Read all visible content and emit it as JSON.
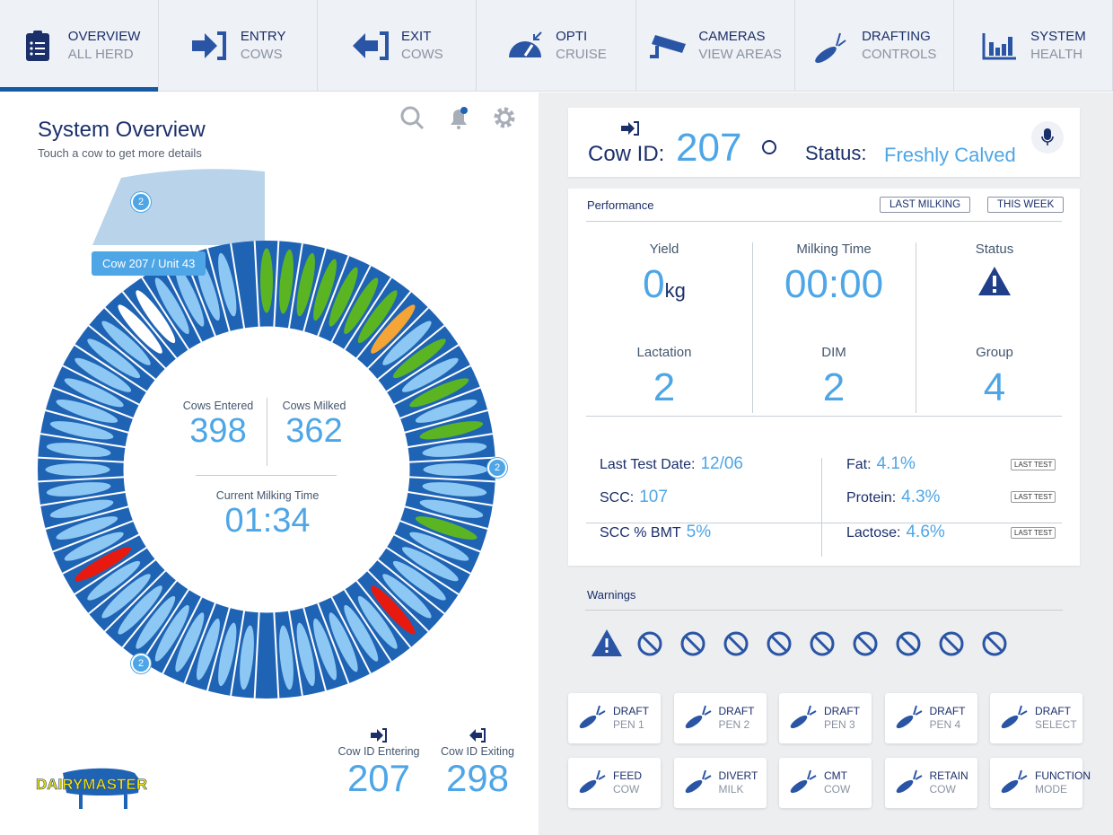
{
  "nav": [
    {
      "l1": "OVERVIEW",
      "l2": "ALL HERD",
      "icon": "clipboard-list-icon"
    },
    {
      "l1": "ENTRY",
      "l2": "COWS",
      "icon": "entry-arrow-icon"
    },
    {
      "l1": "EXIT",
      "l2": "COWS",
      "icon": "exit-arrow-icon"
    },
    {
      "l1": "OPTI",
      "l2": "CRUISE",
      "icon": "speedometer-icon"
    },
    {
      "l1": "CAMERAS",
      "l2": "VIEW AREAS",
      "icon": "camera-icon"
    },
    {
      "l1": "DRAFTING",
      "l2": "CONTROLS",
      "icon": "drafting-icon"
    },
    {
      "l1": "SYSTEM",
      "l2": "HEALTH",
      "icon": "bar-chart-icon"
    }
  ],
  "overview": {
    "title": "System Overview",
    "subtitle": "Touch a cow to get more details",
    "tooltip": "Cow 207 / Unit 43",
    "badges": [
      "2",
      "2",
      "2"
    ],
    "cows_entered_label": "Cows Entered",
    "cows_entered": "398",
    "cows_milked_label": "Cows Milked",
    "cows_milked": "362",
    "milking_time_label": "Current Milking Time",
    "milking_time": "01:34",
    "entering_label": "Cow ID Entering",
    "entering": "207",
    "exiting_label": "Cow ID Exiting",
    "exiting": "298",
    "logo": "DAIRYMASTER",
    "stalls": "GGGGGGGOLGLGLGLLLLGLLLLRLLLLLLELLLLLLLLLRLLLLLLLLLLLLWWLLLLE",
    "colors": {
      "G": "#5bb523",
      "O": "#f5a536",
      "L": "#8cc8f3",
      "R": "#e8190f",
      "W": "#ffffff",
      "ring": "#1f63b4",
      "accent": "#4ea6e6"
    }
  },
  "cow": {
    "id_label": "Cow ID:",
    "id": "207",
    "status_label": "Status:",
    "status": "Freshly Calved"
  },
  "performance": {
    "title": "Performance",
    "btn1": "LAST MILKING",
    "btn2": "THIS WEEK",
    "cells": [
      {
        "label": "Yield",
        "value": "0",
        "unit": "kg"
      },
      {
        "label": "Milking Time",
        "value": "00:00"
      },
      {
        "label": "Status"
      },
      {
        "label": "Lactation",
        "value": "2"
      },
      {
        "label": "DIM",
        "value": "2"
      },
      {
        "label": "Group",
        "value": "4"
      }
    ],
    "last_test_label": "Last Test Date:",
    "last_test": "12/06",
    "scc_label": "SCC:",
    "scc": "107",
    "sccbmt_label": "SCC % BMT",
    "sccbmt": "5%",
    "fat_label": "Fat:",
    "fat": "4.1%",
    "protein_label": "Protein:",
    "protein": "4.3%",
    "lactose_label": "Lactose:",
    "lactose": "4.6%",
    "last_test_btn": "LAST TEST"
  },
  "warnings": {
    "title": "Warnings",
    "icons": [
      "warning-icon",
      "alarm-sound-icon",
      "no-feed-icon",
      "mounting-icon",
      "cow-calf-icon",
      "udder-cross-icon",
      "water-drop-icon",
      "heartbeat-icon",
      "syringe-icon",
      "cmt-paddle-icon"
    ]
  },
  "buttons": [
    {
      "l1": "DRAFT",
      "l2": "PEN 1"
    },
    {
      "l1": "DRAFT",
      "l2": "PEN 2"
    },
    {
      "l1": "DRAFT",
      "l2": "PEN 3"
    },
    {
      "l1": "DRAFT",
      "l2": "PEN 4"
    },
    {
      "l1": "DRAFT",
      "l2": "SELECT"
    },
    {
      "l1": "FEED",
      "l2": "COW"
    },
    {
      "l1": "DIVERT",
      "l2": "MILK"
    },
    {
      "l1": "CMT",
      "l2": "COW"
    },
    {
      "l1": "RETAIN",
      "l2": "COW"
    },
    {
      "l1": "FUNCTION",
      "l2": "MODE"
    }
  ]
}
